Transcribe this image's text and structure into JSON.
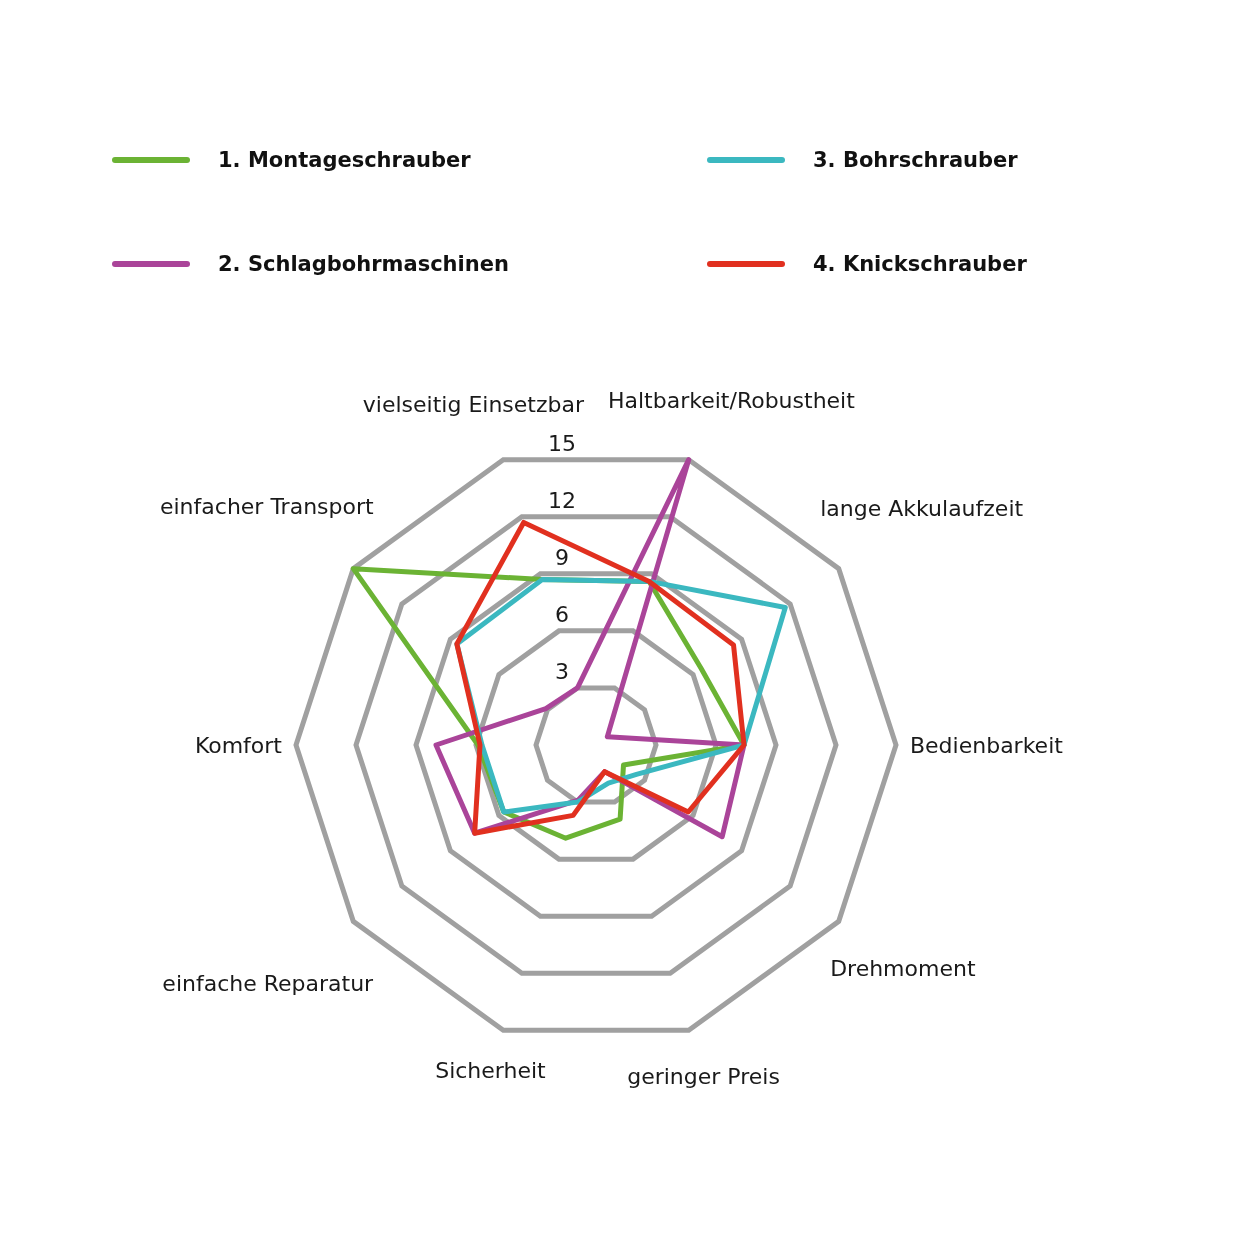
{
  "chart_data": {
    "type": "radar",
    "categories": [
      "Haltbarkeit/Robustheit",
      "lange Akkulaufzeit",
      "Bedienbarkeit",
      "Drehmoment",
      "geringer Preis",
      "Sicherheit",
      "einfache Reparatur",
      "Komfort",
      "einfacher Transport",
      "vielseitig Einsetzbar"
    ],
    "series": [
      {
        "name": "1. Montageschrauber",
        "color": "#6bb334",
        "values": [
          8.6,
          6.5,
          7.4,
          1.7,
          3.9,
          4.9,
          5.7,
          5.9,
          15,
          8.7
        ]
      },
      {
        "name": "2. Schlagbohrmaschinen",
        "color": "#aa4499",
        "values": [
          15,
          0.7,
          7.4,
          7.8,
          1.4,
          2.9,
          7.5,
          8.0,
          3.1,
          3.0
        ]
      },
      {
        "name": "3. Bohrschrauber",
        "color": "#3bb8c0",
        "values": [
          8.6,
          11.7,
          7.4,
          2.5,
          2.0,
          3.0,
          5.7,
          5.7,
          8.6,
          8.7
        ]
      },
      {
        "name": "4. Knickschrauber",
        "color": "#e1301f",
        "values": [
          8.6,
          8.5,
          7.4,
          5.7,
          1.4,
          3.7,
          7.5,
          5.8,
          8.6,
          11.7
        ]
      }
    ],
    "ylim": [
      0,
      15
    ],
    "yticks": [
      3,
      6,
      9,
      12,
      15
    ],
    "grid": true,
    "legend": "top"
  }
}
